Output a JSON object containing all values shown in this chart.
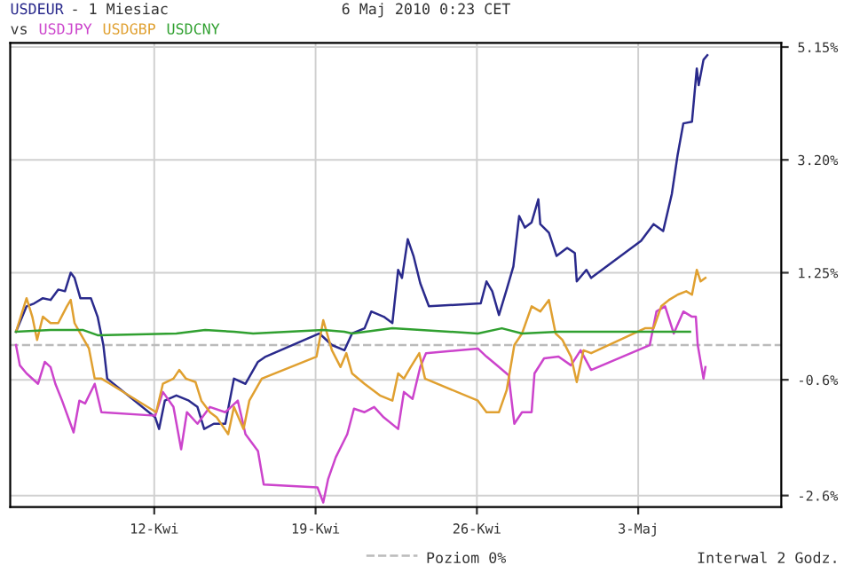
{
  "chart_data": {
    "type": "line",
    "title": "- 1 Miesiac",
    "subtitle": "vs",
    "annotations": [
      "6 Maj 2010 0:23 CET",
      "Interwal 2 Godz."
    ],
    "xlim": [
      "2010-04-05T18:00",
      "2010-05-09T05:00"
    ],
    "ylim": [
      -2.8,
      5.22
    ],
    "xticks": [
      {
        "value": "2010-04-12",
        "label": "12-Kwi"
      },
      {
        "value": "2010-04-19",
        "label": "19-Kwi"
      },
      {
        "value": "2010-04-26",
        "label": "26-Kwi"
      },
      {
        "value": "2010-05-03",
        "label": "3-Maj"
      }
    ],
    "yticks": [
      {
        "value": 5.15,
        "label": "5.15%"
      },
      {
        "value": 3.2,
        "label": "3.20%"
      },
      {
        "value": 1.25,
        "label": "1.25%"
      },
      {
        "value": -0.6,
        "label": "-0.6%"
      },
      {
        "value": -2.6,
        "label": "-2.6%"
      }
    ],
    "grid": true,
    "legend": "bottom",
    "marker": "none",
    "line_style": "solid",
    "ref_lines": [
      {
        "axis": "y",
        "value": 0,
        "label": "Poziom 0%",
        "color": "#bbbbbb",
        "line_style": "dashed"
      }
    ],
    "series": [
      {
        "name": "USDEUR",
        "color": "#2a2a8c",
        "x": [
          "2010-04-06T00:00",
          "2010-04-06T11:00",
          "2010-04-06T19:00",
          "2010-04-07T04:00",
          "2010-04-07T12:00",
          "2010-04-07T20:00",
          "2010-04-08T03:00",
          "2010-04-08T09:00",
          "2010-04-08T13:00",
          "2010-04-08T19:00",
          "2010-04-09T06:00",
          "2010-04-09T13:00",
          "2010-04-09T19:00",
          "2010-04-09T23:00",
          "2010-04-12T01:00",
          "2010-04-12T05:00",
          "2010-04-12T11:00",
          "2010-04-12T23:00",
          "2010-04-13T12:00",
          "2010-04-13T21:00",
          "2010-04-14T04:00",
          "2010-04-14T14:00",
          "2010-04-15T02:00",
          "2010-04-15T11:00",
          "2010-04-15T23:00",
          "2010-04-16T12:00",
          "2010-04-16T20:00",
          "2010-04-19T04:00",
          "2010-04-19T17:00",
          "2010-04-20T06:00",
          "2010-04-20T14:00",
          "2010-04-21T03:00",
          "2010-04-21T10:00",
          "2010-04-21T23:00",
          "2010-04-22T08:00",
          "2010-04-22T14:00",
          "2010-04-22T18:00",
          "2010-04-23T00:00",
          "2010-04-23T06:00",
          "2010-04-23T13:00",
          "2010-04-23T22:00",
          "2010-04-26T04:00",
          "2010-04-26T10:00",
          "2010-04-26T16:00",
          "2010-04-26T23:00",
          "2010-04-27T07:00",
          "2010-04-27T14:00",
          "2010-04-27T20:00",
          "2010-04-28T02:00",
          "2010-04-28T09:00",
          "2010-04-28T16:00",
          "2010-04-28T18:00",
          "2010-04-29T03:00",
          "2010-04-29T11:00",
          "2010-04-29T22:00",
          "2010-04-30T06:00",
          "2010-04-30T08:00",
          "2010-04-30T18:00",
          "2010-04-30T23:00",
          "2010-05-03T03:00",
          "2010-05-03T16:00",
          "2010-05-04T02:00",
          "2010-05-04T11:00",
          "2010-05-04T17:00",
          "2010-05-04T23:00",
          "2010-05-05T08:00",
          "2010-05-05T13:00",
          "2010-05-05T15:00",
          "2010-05-05T20:00",
          "2010-05-06T00:00"
        ],
        "values": [
          0.23,
          0.67,
          0.72,
          0.81,
          0.78,
          0.96,
          0.93,
          1.25,
          1.16,
          0.81,
          0.81,
          0.49,
          0,
          -0.58,
          -1.25,
          -1.45,
          -0.96,
          -0.87,
          -0.96,
          -1.07,
          -1.45,
          -1.36,
          -1.36,
          -0.58,
          -0.67,
          -0.29,
          -0.2,
          0.2,
          0,
          -0.09,
          0.2,
          0.29,
          0.58,
          0.49,
          0.38,
          1.3,
          1.16,
          1.83,
          1.54,
          1.07,
          0.67,
          0.72,
          1.1,
          0.93,
          0.52,
          0.96,
          1.36,
          2.23,
          2.03,
          2.12,
          2.52,
          2.09,
          1.94,
          1.54,
          1.68,
          1.59,
          1.1,
          1.3,
          1.16,
          1.8,
          2.09,
          1.97,
          2.61,
          3.28,
          3.83,
          3.86,
          4.78,
          4.49,
          4.93,
          5.01
        ]
      },
      {
        "name": "USDJPY",
        "color": "#cc44cc",
        "x": [
          "2010-04-06T00:00",
          "2010-04-06T04:00",
          "2010-04-06T11:00",
          "2010-04-06T23:00",
          "2010-04-07T06:00",
          "2010-04-07T12:00",
          "2010-04-07T17:00",
          "2010-04-08T00:00",
          "2010-04-08T12:00",
          "2010-04-08T18:00",
          "2010-04-09T00:00",
          "2010-04-09T10:00",
          "2010-04-09T17:00",
          "2010-04-12T01:00",
          "2010-04-12T09:00",
          "2010-04-12T20:00",
          "2010-04-13T04:00",
          "2010-04-13T10:00",
          "2010-04-13T21:00",
          "2010-04-14T10:00",
          "2010-04-15T02:00",
          "2010-04-15T15:00",
          "2010-04-15T23:00",
          "2010-04-16T12:00",
          "2010-04-16T18:00",
          "2010-04-19T02:00",
          "2010-04-19T08:00",
          "2010-04-19T13:00",
          "2010-04-19T21:00",
          "2010-04-20T09:00",
          "2010-04-20T16:00",
          "2010-04-21T03:00",
          "2010-04-21T13:00",
          "2010-04-21T23:00",
          "2010-04-22T14:00",
          "2010-04-22T20:00",
          "2010-04-23T05:00",
          "2010-04-23T13:00",
          "2010-04-23T19:00",
          "2010-04-26T01:00",
          "2010-04-26T10:00",
          "2010-04-26T23:00",
          "2010-04-27T09:00",
          "2010-04-27T15:00",
          "2010-04-27T23:00",
          "2010-04-28T09:00",
          "2010-04-28T12:00",
          "2010-04-28T22:00",
          "2010-04-29T13:00",
          "2010-04-30T02:00",
          "2010-04-30T12:00",
          "2010-04-30T23:00",
          "2010-05-03T12:00",
          "2010-05-03T19:00",
          "2010-05-04T04:00",
          "2010-05-04T13:00",
          "2010-05-04T23:00",
          "2010-05-05T08:00",
          "2010-05-05T12:00",
          "2010-05-05T14:00",
          "2010-05-05T20:00",
          "2010-05-05T22:00"
        ],
        "values": [
          0,
          -0.35,
          -0.49,
          -0.67,
          -0.29,
          -0.38,
          -0.67,
          -0.96,
          -1.51,
          -0.96,
          -1.01,
          -0.67,
          -1.16,
          -1.22,
          -0.81,
          -1.07,
          -1.8,
          -1.16,
          -1.36,
          -1.07,
          -1.16,
          -0.96,
          -1.54,
          -1.83,
          -2.41,
          -2.46,
          -2.72,
          -2.32,
          -1.94,
          -1.54,
          -1.1,
          -1.16,
          -1.07,
          -1.25,
          -1.45,
          -0.81,
          -0.93,
          -0.38,
          -0.14,
          -0.06,
          -0.2,
          -0.38,
          -0.52,
          -1.36,
          -1.16,
          -1.16,
          -0.49,
          -0.23,
          -0.2,
          -0.35,
          -0.09,
          -0.43,
          0,
          0.58,
          0.67,
          0.2,
          0.58,
          0.49,
          0.49,
          0,
          -0.58,
          -0.38
        ]
      },
      {
        "name": "USDGBP",
        "color": "#e0a030",
        "x": [
          "2010-04-06T00:00",
          "2010-04-06T11:00",
          "2010-04-06T17:00",
          "2010-04-06T22:00",
          "2010-04-07T04:00",
          "2010-04-07T12:00",
          "2010-04-07T20:00",
          "2010-04-08T05:00",
          "2010-04-08T09:00",
          "2010-04-08T13:00",
          "2010-04-08T19:00",
          "2010-04-09T04:00",
          "2010-04-09T10:00",
          "2010-04-09T17:00",
          "2010-04-09T23:00",
          "2010-04-12T02:00",
          "2010-04-12T09:00",
          "2010-04-12T20:00",
          "2010-04-13T02:00",
          "2010-04-13T09:00",
          "2010-04-13T19:00",
          "2010-04-14T01:00",
          "2010-04-14T10:00",
          "2010-04-14T17:00",
          "2010-04-15T05:00",
          "2010-04-15T11:00",
          "2010-04-15T21:00",
          "2010-04-16T03:00",
          "2010-04-16T16:00",
          "2010-04-19T01:00",
          "2010-04-19T08:00",
          "2010-04-19T17:00",
          "2010-04-20T02:00",
          "2010-04-20T08:00",
          "2010-04-20T14:00",
          "2010-04-21T03:00",
          "2010-04-21T19:00",
          "2010-04-22T08:00",
          "2010-04-22T14:00",
          "2010-04-22T20:00",
          "2010-04-23T03:00",
          "2010-04-23T12:00",
          "2010-04-23T18:00",
          "2010-04-26T01:00",
          "2010-04-26T10:00",
          "2010-04-26T23:00",
          "2010-04-27T07:00",
          "2010-04-27T15:00",
          "2010-04-27T23:00",
          "2010-04-28T09:00",
          "2010-04-28T18:00",
          "2010-04-29T03:00",
          "2010-04-29T10:00",
          "2010-04-29T17:00",
          "2010-04-30T02:00",
          "2010-04-30T08:00",
          "2010-04-30T15:00",
          "2010-04-30T23:00",
          "2010-05-03T07:00",
          "2010-05-03T16:00",
          "2010-05-04T00:00",
          "2010-05-04T08:00",
          "2010-05-04T17:00",
          "2010-05-05T02:00",
          "2010-05-05T08:00",
          "2010-05-05T13:00",
          "2010-05-05T17:00",
          "2010-05-05T22:00"
        ],
        "values": [
          0.23,
          0.81,
          0.49,
          0.09,
          0.49,
          0.38,
          0.38,
          0.67,
          0.78,
          0.38,
          0.2,
          -0.06,
          -0.58,
          -0.58,
          -0.64,
          -1.16,
          -0.67,
          -0.58,
          -0.43,
          -0.58,
          -0.64,
          -0.96,
          -1.16,
          -1.25,
          -1.54,
          -1.07,
          -1.45,
          -0.96,
          -0.58,
          -0.2,
          0.43,
          -0.09,
          -0.38,
          -0.14,
          -0.49,
          -0.67,
          -0.87,
          -0.96,
          -0.49,
          -0.58,
          -0.38,
          -0.14,
          -0.58,
          -0.96,
          -1.16,
          -1.16,
          -0.78,
          0,
          0.2,
          0.67,
          0.58,
          0.78,
          0.2,
          0.09,
          -0.2,
          -0.64,
          -0.09,
          -0.14,
          0.29,
          0.29,
          0.67,
          0.78,
          0.87,
          0.93,
          0.87,
          1.3,
          1.1,
          1.16
        ]
      },
      {
        "name": "USDCNY",
        "color": "#30a030",
        "x": [
          "2010-04-06T00:00",
          "2010-04-07T12:00",
          "2010-04-08T22:00",
          "2010-04-09T13:00",
          "2010-04-12T23:00",
          "2010-04-14T05:00",
          "2010-04-15T11:00",
          "2010-04-16T07:00",
          "2010-04-19T08:00",
          "2010-04-20T06:00",
          "2010-04-20T14:00",
          "2010-04-22T08:00",
          "2010-04-26T01:00",
          "2010-04-27T02:00",
          "2010-04-27T23:00",
          "2010-04-29T13:00",
          "2010-05-03T07:00",
          "2010-05-05T06:00"
        ],
        "values": [
          0.23,
          0.26,
          0.26,
          0.17,
          0.2,
          0.26,
          0.23,
          0.2,
          0.26,
          0.23,
          0.2,
          0.29,
          0.2,
          0.29,
          0.2,
          0.23,
          0.23,
          0.23
        ]
      }
    ]
  }
}
